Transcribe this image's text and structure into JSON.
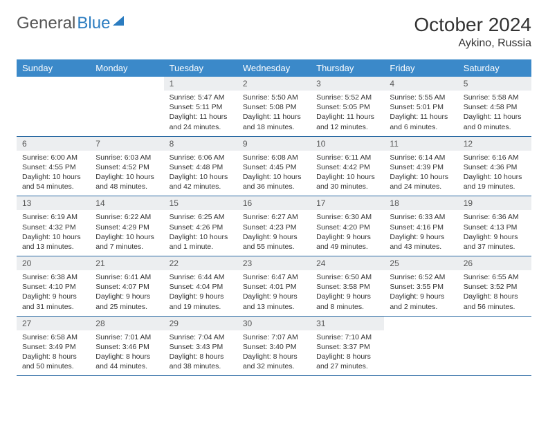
{
  "brand": {
    "part1": "General",
    "part2": "Blue"
  },
  "title": {
    "month": "October 2024",
    "location": "Aykino, Russia"
  },
  "colors": {
    "header_bg": "#3b89c9",
    "header_text": "#ffffff",
    "daynum_bg": "#eceef0",
    "row_border": "#2b6aa3",
    "logo_blue": "#2b7cc0",
    "text": "#333333"
  },
  "days_of_week": [
    "Sunday",
    "Monday",
    "Tuesday",
    "Wednesday",
    "Thursday",
    "Friday",
    "Saturday"
  ],
  "weeks": [
    [
      null,
      null,
      {
        "n": "1",
        "sr": "Sunrise: 5:47 AM",
        "ss": "Sunset: 5:11 PM",
        "dl1": "Daylight: 11 hours",
        "dl2": "and 24 minutes."
      },
      {
        "n": "2",
        "sr": "Sunrise: 5:50 AM",
        "ss": "Sunset: 5:08 PM",
        "dl1": "Daylight: 11 hours",
        "dl2": "and 18 minutes."
      },
      {
        "n": "3",
        "sr": "Sunrise: 5:52 AM",
        "ss": "Sunset: 5:05 PM",
        "dl1": "Daylight: 11 hours",
        "dl2": "and 12 minutes."
      },
      {
        "n": "4",
        "sr": "Sunrise: 5:55 AM",
        "ss": "Sunset: 5:01 PM",
        "dl1": "Daylight: 11 hours",
        "dl2": "and 6 minutes."
      },
      {
        "n": "5",
        "sr": "Sunrise: 5:58 AM",
        "ss": "Sunset: 4:58 PM",
        "dl1": "Daylight: 11 hours",
        "dl2": "and 0 minutes."
      }
    ],
    [
      {
        "n": "6",
        "sr": "Sunrise: 6:00 AM",
        "ss": "Sunset: 4:55 PM",
        "dl1": "Daylight: 10 hours",
        "dl2": "and 54 minutes."
      },
      {
        "n": "7",
        "sr": "Sunrise: 6:03 AM",
        "ss": "Sunset: 4:52 PM",
        "dl1": "Daylight: 10 hours",
        "dl2": "and 48 minutes."
      },
      {
        "n": "8",
        "sr": "Sunrise: 6:06 AM",
        "ss": "Sunset: 4:48 PM",
        "dl1": "Daylight: 10 hours",
        "dl2": "and 42 minutes."
      },
      {
        "n": "9",
        "sr": "Sunrise: 6:08 AM",
        "ss": "Sunset: 4:45 PM",
        "dl1": "Daylight: 10 hours",
        "dl2": "and 36 minutes."
      },
      {
        "n": "10",
        "sr": "Sunrise: 6:11 AM",
        "ss": "Sunset: 4:42 PM",
        "dl1": "Daylight: 10 hours",
        "dl2": "and 30 minutes."
      },
      {
        "n": "11",
        "sr": "Sunrise: 6:14 AM",
        "ss": "Sunset: 4:39 PM",
        "dl1": "Daylight: 10 hours",
        "dl2": "and 24 minutes."
      },
      {
        "n": "12",
        "sr": "Sunrise: 6:16 AM",
        "ss": "Sunset: 4:36 PM",
        "dl1": "Daylight: 10 hours",
        "dl2": "and 19 minutes."
      }
    ],
    [
      {
        "n": "13",
        "sr": "Sunrise: 6:19 AM",
        "ss": "Sunset: 4:32 PM",
        "dl1": "Daylight: 10 hours",
        "dl2": "and 13 minutes."
      },
      {
        "n": "14",
        "sr": "Sunrise: 6:22 AM",
        "ss": "Sunset: 4:29 PM",
        "dl1": "Daylight: 10 hours",
        "dl2": "and 7 minutes."
      },
      {
        "n": "15",
        "sr": "Sunrise: 6:25 AM",
        "ss": "Sunset: 4:26 PM",
        "dl1": "Daylight: 10 hours",
        "dl2": "and 1 minute."
      },
      {
        "n": "16",
        "sr": "Sunrise: 6:27 AM",
        "ss": "Sunset: 4:23 PM",
        "dl1": "Daylight: 9 hours",
        "dl2": "and 55 minutes."
      },
      {
        "n": "17",
        "sr": "Sunrise: 6:30 AM",
        "ss": "Sunset: 4:20 PM",
        "dl1": "Daylight: 9 hours",
        "dl2": "and 49 minutes."
      },
      {
        "n": "18",
        "sr": "Sunrise: 6:33 AM",
        "ss": "Sunset: 4:16 PM",
        "dl1": "Daylight: 9 hours",
        "dl2": "and 43 minutes."
      },
      {
        "n": "19",
        "sr": "Sunrise: 6:36 AM",
        "ss": "Sunset: 4:13 PM",
        "dl1": "Daylight: 9 hours",
        "dl2": "and 37 minutes."
      }
    ],
    [
      {
        "n": "20",
        "sr": "Sunrise: 6:38 AM",
        "ss": "Sunset: 4:10 PM",
        "dl1": "Daylight: 9 hours",
        "dl2": "and 31 minutes."
      },
      {
        "n": "21",
        "sr": "Sunrise: 6:41 AM",
        "ss": "Sunset: 4:07 PM",
        "dl1": "Daylight: 9 hours",
        "dl2": "and 25 minutes."
      },
      {
        "n": "22",
        "sr": "Sunrise: 6:44 AM",
        "ss": "Sunset: 4:04 PM",
        "dl1": "Daylight: 9 hours",
        "dl2": "and 19 minutes."
      },
      {
        "n": "23",
        "sr": "Sunrise: 6:47 AM",
        "ss": "Sunset: 4:01 PM",
        "dl1": "Daylight: 9 hours",
        "dl2": "and 13 minutes."
      },
      {
        "n": "24",
        "sr": "Sunrise: 6:50 AM",
        "ss": "Sunset: 3:58 PM",
        "dl1": "Daylight: 9 hours",
        "dl2": "and 8 minutes."
      },
      {
        "n": "25",
        "sr": "Sunrise: 6:52 AM",
        "ss": "Sunset: 3:55 PM",
        "dl1": "Daylight: 9 hours",
        "dl2": "and 2 minutes."
      },
      {
        "n": "26",
        "sr": "Sunrise: 6:55 AM",
        "ss": "Sunset: 3:52 PM",
        "dl1": "Daylight: 8 hours",
        "dl2": "and 56 minutes."
      }
    ],
    [
      {
        "n": "27",
        "sr": "Sunrise: 6:58 AM",
        "ss": "Sunset: 3:49 PM",
        "dl1": "Daylight: 8 hours",
        "dl2": "and 50 minutes."
      },
      {
        "n": "28",
        "sr": "Sunrise: 7:01 AM",
        "ss": "Sunset: 3:46 PM",
        "dl1": "Daylight: 8 hours",
        "dl2": "and 44 minutes."
      },
      {
        "n": "29",
        "sr": "Sunrise: 7:04 AM",
        "ss": "Sunset: 3:43 PM",
        "dl1": "Daylight: 8 hours",
        "dl2": "and 38 minutes."
      },
      {
        "n": "30",
        "sr": "Sunrise: 7:07 AM",
        "ss": "Sunset: 3:40 PM",
        "dl1": "Daylight: 8 hours",
        "dl2": "and 32 minutes."
      },
      {
        "n": "31",
        "sr": "Sunrise: 7:10 AM",
        "ss": "Sunset: 3:37 PM",
        "dl1": "Daylight: 8 hours",
        "dl2": "and 27 minutes."
      },
      null,
      null
    ]
  ]
}
